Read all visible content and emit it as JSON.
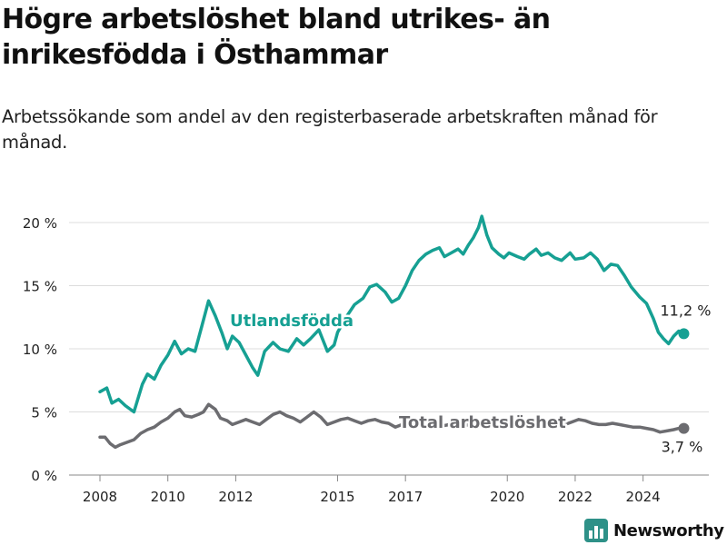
{
  "title": "Högre arbetslöshet bland utrikes- än inrikesfödda i Östhammar",
  "subtitle": "Arbetssökande som andel av den registerbaserade arbetskraften månad för månad.",
  "brand": "Newsworthy",
  "colors": {
    "foreign": "#16a093",
    "total": "#6c6c70",
    "grid": "#dcdcdc",
    "axis": "#888888",
    "text": "#222222",
    "brand": "#2e9188"
  },
  "chart_data": {
    "type": "line",
    "title": "Högre arbetslöshet bland utrikes- än inrikesfödda i Östhammar",
    "subtitle": "Arbetssökande som andel av den registerbaserade arbetskraften månad för månad.",
    "xlim": [
      2008.0,
      2025.5
    ],
    "ylim": [
      0,
      21
    ],
    "x_ticks": [
      2008,
      2010,
      2012,
      2015,
      2017,
      2020,
      2022,
      2024
    ],
    "y_ticks": [
      {
        "value": 0,
        "label": "0 %"
      },
      {
        "value": 5,
        "label": "5 %"
      },
      {
        "value": 10,
        "label": "10 %"
      },
      {
        "value": 15,
        "label": "15 %"
      },
      {
        "value": 20,
        "label": "20 %"
      }
    ],
    "grid": "horizontal",
    "series": [
      {
        "name": "Utlandsfödda",
        "end_label": "11,2 %",
        "points": [
          [
            2008.0,
            6.6
          ],
          [
            2008.2,
            6.9
          ],
          [
            2008.35,
            5.7
          ],
          [
            2008.55,
            6.0
          ],
          [
            2008.75,
            5.5
          ],
          [
            2009.0,
            5.0
          ],
          [
            2009.25,
            7.2
          ],
          [
            2009.4,
            8.0
          ],
          [
            2009.6,
            7.6
          ],
          [
            2009.8,
            8.7
          ],
          [
            2010.0,
            9.5
          ],
          [
            2010.2,
            10.6
          ],
          [
            2010.4,
            9.6
          ],
          [
            2010.6,
            10.0
          ],
          [
            2010.8,
            9.8
          ],
          [
            2011.0,
            11.8
          ],
          [
            2011.2,
            13.8
          ],
          [
            2011.4,
            12.6
          ],
          [
            2011.6,
            11.2
          ],
          [
            2011.75,
            10.0
          ],
          [
            2011.9,
            11.0
          ],
          [
            2012.1,
            10.5
          ],
          [
            2012.3,
            9.5
          ],
          [
            2012.5,
            8.5
          ],
          [
            2012.65,
            7.9
          ],
          [
            2012.85,
            9.8
          ],
          [
            2013.1,
            10.5
          ],
          [
            2013.3,
            10.0
          ],
          [
            2013.55,
            9.8
          ],
          [
            2013.8,
            10.8
          ],
          [
            2014.0,
            10.3
          ],
          [
            2014.2,
            10.8
          ],
          [
            2014.45,
            11.5
          ],
          [
            2014.7,
            9.8
          ],
          [
            2014.9,
            10.3
          ],
          [
            2015.0,
            11.3
          ],
          [
            2015.25,
            12.5
          ],
          [
            2015.5,
            13.5
          ],
          [
            2015.75,
            14.0
          ],
          [
            2015.95,
            14.9
          ],
          [
            2016.15,
            15.1
          ],
          [
            2016.4,
            14.5
          ],
          [
            2016.6,
            13.7
          ],
          [
            2016.8,
            14.0
          ],
          [
            2017.0,
            15.0
          ],
          [
            2017.2,
            16.2
          ],
          [
            2017.4,
            17.0
          ],
          [
            2017.6,
            17.5
          ],
          [
            2017.8,
            17.8
          ],
          [
            2018.0,
            18.0
          ],
          [
            2018.15,
            17.3
          ],
          [
            2018.35,
            17.6
          ],
          [
            2018.55,
            17.9
          ],
          [
            2018.7,
            17.5
          ],
          [
            2018.85,
            18.2
          ],
          [
            2019.0,
            18.8
          ],
          [
            2019.15,
            19.6
          ],
          [
            2019.25,
            20.5
          ],
          [
            2019.4,
            19.0
          ],
          [
            2019.55,
            18.0
          ],
          [
            2019.75,
            17.5
          ],
          [
            2019.9,
            17.2
          ],
          [
            2020.05,
            17.6
          ],
          [
            2020.3,
            17.3
          ],
          [
            2020.5,
            17.1
          ],
          [
            2020.65,
            17.5
          ],
          [
            2020.85,
            17.9
          ],
          [
            2021.0,
            17.4
          ],
          [
            2021.2,
            17.6
          ],
          [
            2021.4,
            17.2
          ],
          [
            2021.6,
            17.0
          ],
          [
            2021.85,
            17.6
          ],
          [
            2022.0,
            17.1
          ],
          [
            2022.25,
            17.2
          ],
          [
            2022.45,
            17.6
          ],
          [
            2022.65,
            17.1
          ],
          [
            2022.85,
            16.2
          ],
          [
            2023.05,
            16.7
          ],
          [
            2023.25,
            16.6
          ],
          [
            2023.45,
            15.8
          ],
          [
            2023.65,
            14.9
          ],
          [
            2023.9,
            14.1
          ],
          [
            2024.1,
            13.6
          ],
          [
            2024.3,
            12.4
          ],
          [
            2024.45,
            11.3
          ],
          [
            2024.6,
            10.8
          ],
          [
            2024.75,
            10.4
          ],
          [
            2024.9,
            11.0
          ],
          [
            2025.05,
            11.4
          ],
          [
            2025.2,
            11.2
          ]
        ]
      },
      {
        "name": "Total arbetslöshet",
        "end_label": "3,7 %",
        "points": [
          [
            2008.0,
            3.0
          ],
          [
            2008.15,
            3.0
          ],
          [
            2008.3,
            2.5
          ],
          [
            2008.45,
            2.2
          ],
          [
            2008.6,
            2.4
          ],
          [
            2008.8,
            2.6
          ],
          [
            2009.0,
            2.8
          ],
          [
            2009.2,
            3.3
          ],
          [
            2009.4,
            3.6
          ],
          [
            2009.6,
            3.8
          ],
          [
            2009.8,
            4.2
          ],
          [
            2010.0,
            4.5
          ],
          [
            2010.2,
            5.0
          ],
          [
            2010.35,
            5.2
          ],
          [
            2010.5,
            4.7
          ],
          [
            2010.7,
            4.6
          ],
          [
            2010.9,
            4.8
          ],
          [
            2011.05,
            5.0
          ],
          [
            2011.2,
            5.6
          ],
          [
            2011.4,
            5.2
          ],
          [
            2011.55,
            4.5
          ],
          [
            2011.75,
            4.3
          ],
          [
            2011.9,
            4.0
          ],
          [
            2012.1,
            4.2
          ],
          [
            2012.3,
            4.4
          ],
          [
            2012.5,
            4.2
          ],
          [
            2012.7,
            4.0
          ],
          [
            2012.9,
            4.4
          ],
          [
            2013.1,
            4.8
          ],
          [
            2013.3,
            5.0
          ],
          [
            2013.5,
            4.7
          ],
          [
            2013.7,
            4.5
          ],
          [
            2013.9,
            4.2
          ],
          [
            2014.1,
            4.6
          ],
          [
            2014.3,
            5.0
          ],
          [
            2014.5,
            4.6
          ],
          [
            2014.7,
            4.0
          ],
          [
            2014.9,
            4.2
          ],
          [
            2015.1,
            4.4
          ],
          [
            2015.3,
            4.5
          ],
          [
            2015.5,
            4.3
          ],
          [
            2015.7,
            4.1
          ],
          [
            2015.9,
            4.3
          ],
          [
            2016.1,
            4.4
          ],
          [
            2016.3,
            4.2
          ],
          [
            2016.5,
            4.1
          ],
          [
            2016.7,
            3.8
          ],
          [
            2016.9,
            4.0
          ],
          [
            2017.1,
            4.1
          ],
          [
            2017.3,
            4.2
          ],
          [
            2017.5,
            4.0
          ],
          [
            2017.7,
            4.1
          ],
          [
            2017.9,
            4.0
          ],
          [
            2018.1,
            3.9
          ],
          [
            2018.3,
            4.0
          ],
          [
            2018.5,
            3.9
          ],
          [
            2018.7,
            3.9
          ],
          [
            2018.9,
            4.0
          ],
          [
            2019.1,
            4.1
          ],
          [
            2019.3,
            3.9
          ],
          [
            2019.5,
            4.0
          ],
          [
            2019.7,
            4.1
          ],
          [
            2019.9,
            4.2
          ],
          [
            2020.1,
            4.3
          ],
          [
            2020.3,
            4.4
          ],
          [
            2020.5,
            4.2
          ],
          [
            2020.7,
            4.1
          ],
          [
            2020.9,
            4.2
          ],
          [
            2021.1,
            4.2
          ],
          [
            2021.3,
            4.0
          ],
          [
            2021.5,
            3.9
          ],
          [
            2021.7,
            4.0
          ],
          [
            2021.9,
            4.2
          ],
          [
            2022.1,
            4.4
          ],
          [
            2022.3,
            4.3
          ],
          [
            2022.5,
            4.1
          ],
          [
            2022.7,
            4.0
          ],
          [
            2022.9,
            4.0
          ],
          [
            2023.1,
            4.1
          ],
          [
            2023.3,
            4.0
          ],
          [
            2023.5,
            3.9
          ],
          [
            2023.7,
            3.8
          ],
          [
            2023.9,
            3.8
          ],
          [
            2024.1,
            3.7
          ],
          [
            2024.3,
            3.6
          ],
          [
            2024.5,
            3.4
          ],
          [
            2024.7,
            3.5
          ],
          [
            2024.9,
            3.6
          ],
          [
            2025.05,
            3.7
          ],
          [
            2025.2,
            3.7
          ]
        ]
      }
    ]
  }
}
